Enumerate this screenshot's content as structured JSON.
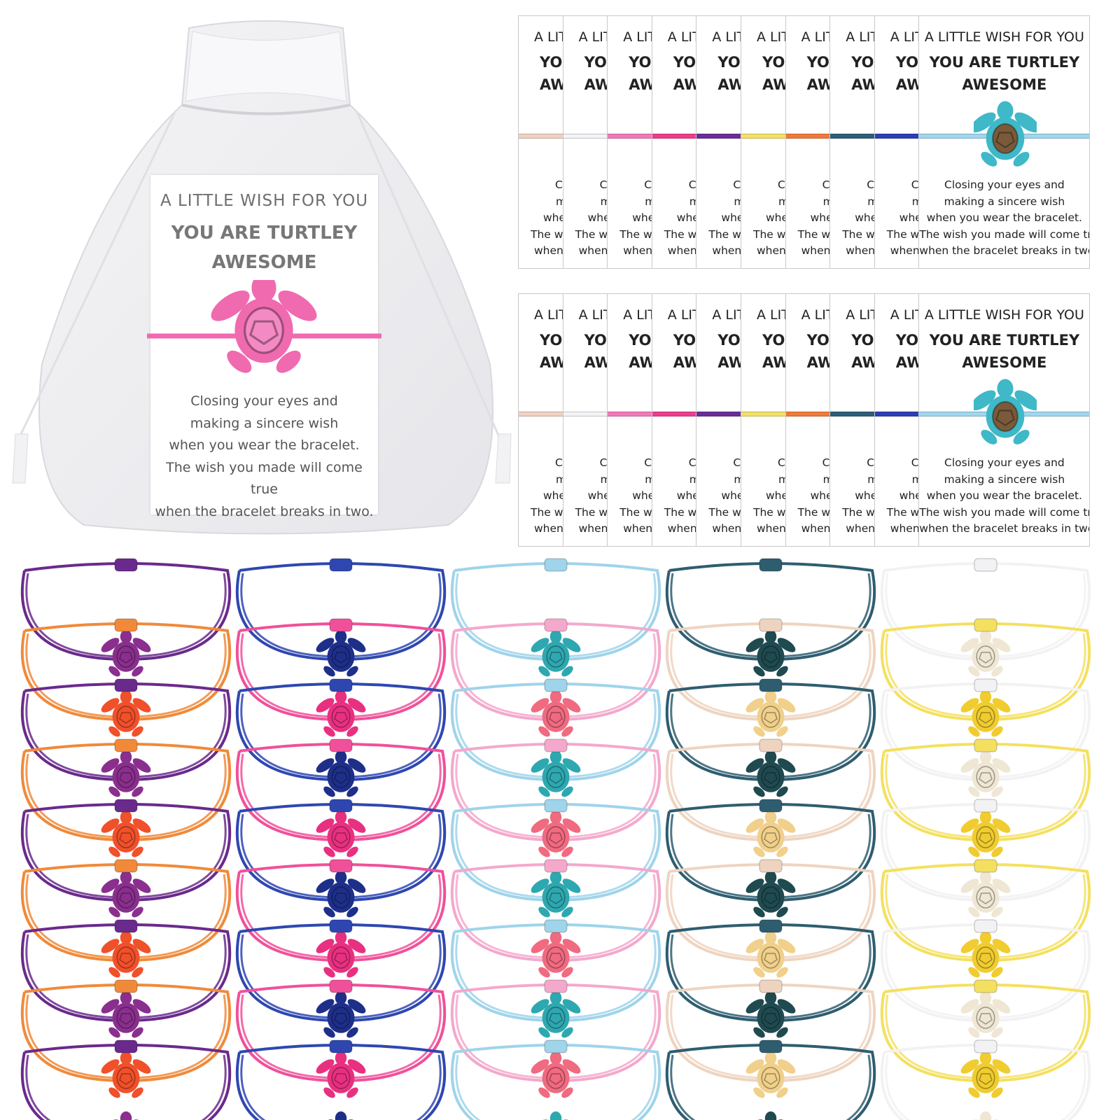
{
  "card": {
    "title": "A LITTLE WISH FOR YOU",
    "headline_1": "YOU ARE TURTLEY",
    "headline_2": "AWESOME",
    "poem": [
      "Closing your eyes and",
      "making a sincere wish",
      "when you wear the bracelet.",
      "The wish you made will come true",
      "when the bracelet breaks in two."
    ]
  },
  "card_cord_colors": [
    "#f2d2c2",
    "#f4f4f8",
    "#f27ab8",
    "#ee3d8c",
    "#6b2d9a",
    "#f2e166",
    "#f07a3a",
    "#2e5f78",
    "#2b3fb8",
    "#9fd7ee"
  ],
  "bag_card_turtle_color": "#f06ab0",
  "card_turtle_color": "#3fb8c8",
  "bracelet_columns": [
    {
      "cord_a": "#6a2a8c",
      "cord_b": "#f08a3a",
      "bead_a": "#8a2f8e",
      "bead_b": "#f0502a"
    },
    {
      "cord_a": "#2e47b0",
      "cord_b": "#f0509a",
      "bead_a": "#1e2f8a",
      "bead_b": "#e83080"
    },
    {
      "cord_a": "#9fd4ea",
      "cord_b": "#f4a8cc",
      "bead_a": "#2ea8b0",
      "bead_b": "#f06a80"
    },
    {
      "cord_a": "#2e5d70",
      "cord_b": "#eed4c0",
      "bead_a": "#1f4a50",
      "bead_b": "#f0d08a"
    },
    {
      "cord_a": "#f2f2f4",
      "cord_b": "#f4e060",
      "bead_a": "#efe6d4",
      "bead_b": "#f0cc30"
    }
  ]
}
